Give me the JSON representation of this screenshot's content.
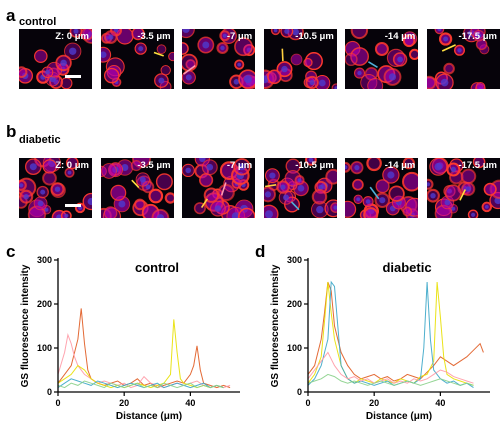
{
  "panels": {
    "a": {
      "letter": "a",
      "label": "control",
      "z_labels": [
        "Z: 0 μm",
        "-3.5 μm",
        "-7 μm",
        "-10.5 μm",
        "-14 μm",
        "-17.5 μm"
      ]
    },
    "b": {
      "letter": "b",
      "label": "diabetic",
      "z_labels": [
        "Z: 0 μm",
        "-3.5 μm",
        "-7 μm",
        "-10.5 μm",
        "-14 μm",
        "-17.5 μm"
      ]
    }
  },
  "colors": {
    "red": "#ff3a2e",
    "magenta": "#b000b0",
    "blue": "#4d3bd0",
    "bg": "#06030a",
    "line_yellow": "#e8e000",
    "line_blue": "#3aa6c8",
    "line_pink": "#ff9aa6",
    "line_orange": "#e05a20",
    "line_green": "#8ad08a"
  },
  "chart_data": [
    {
      "panel": "c",
      "type": "line",
      "title": "control",
      "xlabel": "Distance (μm)",
      "ylabel": "GS fluorescence intensity",
      "xlim": [
        0,
        55
      ],
      "ylim": [
        0,
        300
      ],
      "xticks": [
        "0",
        "20",
        "40"
      ],
      "yticks": [
        "0",
        "100",
        "200",
        "300"
      ],
      "series": [
        {
          "color": "#e05a20",
          "x": [
            0,
            2,
            4,
            6,
            7,
            8,
            9,
            10,
            12,
            14,
            16,
            18,
            20,
            22,
            24,
            26,
            28,
            30,
            32,
            34,
            36,
            38,
            40,
            41,
            42,
            43,
            44,
            46,
            48,
            50,
            52
          ],
          "y": [
            20,
            40,
            60,
            120,
            190,
            110,
            50,
            30,
            20,
            15,
            20,
            25,
            15,
            20,
            30,
            15,
            20,
            10,
            15,
            20,
            25,
            20,
            40,
            60,
            105,
            50,
            20,
            15,
            10,
            15,
            10
          ]
        },
        {
          "color": "#ff9aa6",
          "x": [
            0,
            2,
            3,
            4,
            5,
            6,
            8,
            10,
            12,
            14,
            16,
            18,
            20,
            22,
            24,
            26,
            28,
            30,
            32,
            34,
            36,
            38,
            40,
            42,
            44,
            46,
            48,
            50,
            52
          ],
          "y": [
            40,
            90,
            130,
            110,
            80,
            60,
            40,
            30,
            20,
            25,
            20,
            15,
            20,
            10,
            15,
            35,
            20,
            15,
            10,
            15,
            20,
            15,
            20,
            25,
            15,
            10,
            15,
            10,
            15
          ]
        },
        {
          "color": "#e8e000",
          "x": [
            0,
            2,
            4,
            6,
            8,
            10,
            12,
            14,
            16,
            18,
            20,
            22,
            24,
            26,
            28,
            30,
            32,
            34,
            35,
            36,
            37,
            38,
            40,
            42,
            44,
            46,
            48,
            50
          ],
          "y": [
            20,
            30,
            40,
            60,
            50,
            30,
            20,
            15,
            10,
            15,
            10,
            15,
            20,
            15,
            10,
            15,
            20,
            40,
            165,
            90,
            30,
            20,
            15,
            10,
            15,
            10,
            15,
            10
          ]
        },
        {
          "color": "#3aa6c8",
          "x": [
            0,
            2,
            4,
            6,
            8,
            10,
            12,
            14,
            16,
            18,
            20,
            22,
            24,
            26,
            28,
            30,
            32,
            34,
            36,
            38,
            40,
            42,
            44,
            46,
            48,
            50
          ],
          "y": [
            10,
            20,
            30,
            25,
            20,
            15,
            25,
            20,
            15,
            10,
            15,
            20,
            15,
            10,
            15,
            20,
            10,
            15,
            20,
            15,
            10,
            15,
            20,
            10,
            15,
            10
          ]
        },
        {
          "color": "#8ad08a",
          "x": [
            0,
            2,
            4,
            6,
            8,
            10,
            12,
            14,
            16,
            18,
            20,
            22,
            24,
            26,
            28,
            30,
            32,
            34,
            36,
            38,
            40,
            42,
            44,
            46,
            48,
            50
          ],
          "y": [
            15,
            10,
            20,
            15,
            25,
            20,
            15,
            10,
            20,
            15,
            10,
            15,
            20,
            10,
            15,
            10,
            20,
            15,
            10,
            15,
            20,
            10,
            15,
            10,
            15,
            10
          ]
        }
      ]
    },
    {
      "panel": "d",
      "type": "line",
      "title": "diabetic",
      "xlabel": "Distance (μm)",
      "ylabel": "GS fluorescence intensity",
      "xlim": [
        0,
        55
      ],
      "ylim": [
        0,
        300
      ],
      "xticks": [
        "0",
        "20",
        "40"
      ],
      "yticks": [
        "0",
        "100",
        "200",
        "300"
      ],
      "series": [
        {
          "color": "#e05a20",
          "x": [
            0,
            2,
            4,
            5,
            6,
            7,
            8,
            10,
            12,
            14,
            16,
            18,
            20,
            22,
            24,
            26,
            28,
            30,
            32,
            34,
            36,
            38,
            40,
            42,
            44,
            46,
            48,
            50,
            52,
            53
          ],
          "y": [
            40,
            60,
            120,
            180,
            250,
            230,
            150,
            90,
            60,
            40,
            30,
            35,
            40,
            30,
            35,
            25,
            30,
            40,
            35,
            30,
            45,
            60,
            80,
            70,
            60,
            70,
            80,
            95,
            110,
            90
          ]
        },
        {
          "color": "#e8e000",
          "x": [
            0,
            2,
            4,
            5,
            6,
            7,
            8,
            10,
            12,
            14,
            16,
            18,
            20,
            22,
            24,
            26,
            28,
            30,
            32,
            34,
            36,
            38,
            39,
            40,
            41,
            42,
            44,
            46,
            48,
            50
          ],
          "y": [
            20,
            40,
            80,
            160,
            250,
            180,
            120,
            60,
            30,
            20,
            30,
            25,
            20,
            30,
            25,
            20,
            30,
            25,
            20,
            35,
            40,
            70,
            250,
            170,
            80,
            40,
            30,
            25,
            20,
            15
          ]
        },
        {
          "color": "#3aa6c8",
          "x": [
            0,
            2,
            4,
            6,
            7,
            8,
            9,
            10,
            12,
            14,
            16,
            18,
            20,
            22,
            24,
            26,
            28,
            30,
            32,
            34,
            35,
            36,
            37,
            38,
            40,
            42,
            44,
            46,
            48,
            50
          ],
          "y": [
            15,
            30,
            60,
            120,
            250,
            240,
            150,
            60,
            30,
            20,
            25,
            20,
            15,
            20,
            25,
            15,
            20,
            25,
            20,
            30,
            100,
            250,
            120,
            50,
            30,
            20,
            25,
            15,
            20,
            10
          ]
        },
        {
          "color": "#ff9aa6",
          "x": [
            0,
            2,
            4,
            6,
            8,
            10,
            12,
            14,
            16,
            18,
            20,
            22,
            24,
            26,
            28,
            30,
            32,
            34,
            36,
            38,
            40,
            42,
            44,
            46,
            48,
            50
          ],
          "y": [
            30,
            50,
            70,
            90,
            60,
            40,
            30,
            35,
            25,
            30,
            20,
            25,
            30,
            20,
            25,
            20,
            30,
            25,
            30,
            40,
            50,
            45,
            35,
            30,
            25,
            20
          ]
        },
        {
          "color": "#8ad08a",
          "x": [
            0,
            2,
            4,
            6,
            8,
            10,
            12,
            14,
            16,
            18,
            20,
            22,
            24,
            26,
            28,
            30,
            32,
            34,
            36,
            38,
            40,
            42,
            44,
            46,
            48,
            50
          ],
          "y": [
            20,
            25,
            30,
            40,
            35,
            25,
            20,
            25,
            20,
            15,
            20,
            25,
            20,
            15,
            20,
            25,
            20,
            15,
            20,
            25,
            30,
            25,
            20,
            15,
            20,
            15
          ]
        }
      ]
    }
  ]
}
